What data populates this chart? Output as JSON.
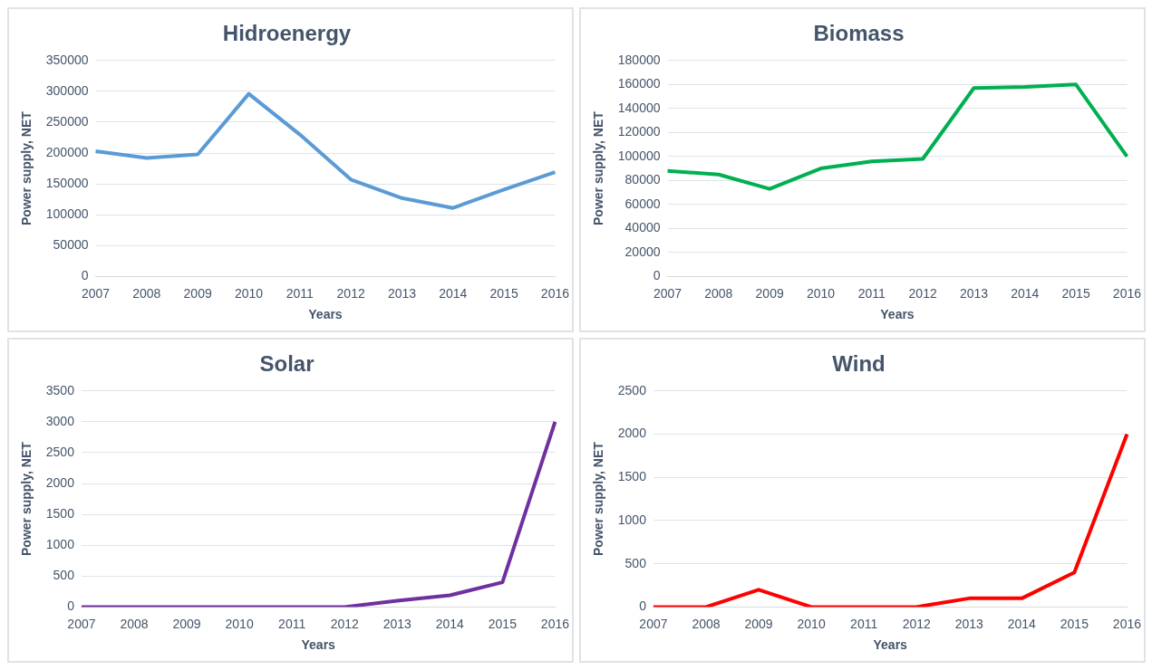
{
  "chart_data": [
    {
      "type": "line",
      "title": "Hidroenergy",
      "xlabel": "Years",
      "ylabel": "Power supply, NET",
      "categories": [
        "2007",
        "2008",
        "2009",
        "2010",
        "2011",
        "2012",
        "2013",
        "2014",
        "2015",
        "2016"
      ],
      "series": [
        {
          "color": "#5b9bd5",
          "values": [
            203000,
            192000,
            198000,
            296000,
            230000,
            157000,
            127000,
            111000,
            141000,
            169000
          ]
        }
      ],
      "ylim": [
        0,
        350000
      ],
      "yticks": [
        0,
        50000,
        100000,
        150000,
        200000,
        250000,
        300000,
        350000
      ],
      "grid": "y",
      "legend": false,
      "marker": "none"
    },
    {
      "type": "line",
      "title": "Biomass",
      "xlabel": "Years",
      "ylabel": "Power supply, NET",
      "categories": [
        "2007",
        "2008",
        "2009",
        "2010",
        "2011",
        "2012",
        "2013",
        "2014",
        "2015",
        "2016"
      ],
      "series": [
        {
          "color": "#00b050",
          "values": [
            88000,
            85000,
            73000,
            90000,
            96000,
            98000,
            157000,
            158000,
            160000,
            100000
          ]
        }
      ],
      "ylim": [
        0,
        180000
      ],
      "yticks": [
        0,
        20000,
        40000,
        60000,
        80000,
        100000,
        120000,
        140000,
        160000,
        180000
      ],
      "grid": "y",
      "legend": false,
      "marker": "none"
    },
    {
      "type": "line",
      "title": "Solar",
      "xlabel": "Years",
      "ylabel": "Power supply, NET",
      "categories": [
        "2007",
        "2008",
        "2009",
        "2010",
        "2011",
        "2012",
        "2013",
        "2014",
        "2015",
        "2016"
      ],
      "series": [
        {
          "color": "#7030a0",
          "values": [
            0,
            0,
            0,
            0,
            0,
            0,
            100,
            190,
            400,
            3000
          ]
        }
      ],
      "ylim": [
        0,
        3500
      ],
      "yticks": [
        0,
        500,
        1000,
        1500,
        2000,
        2500,
        3000,
        3500
      ],
      "grid": "y",
      "legend": false,
      "marker": "none"
    },
    {
      "type": "line",
      "title": "Wind",
      "xlabel": "Years",
      "ylabel": "Power supply, NET",
      "categories": [
        "2007",
        "2008",
        "2009",
        "2010",
        "2011",
        "2012",
        "2013",
        "2014",
        "2015",
        "2016"
      ],
      "series": [
        {
          "color": "#ff0000",
          "values": [
            0,
            0,
            200,
            0,
            0,
            0,
            100,
            100,
            400,
            2000
          ]
        }
      ],
      "ylim": [
        0,
        2500
      ],
      "yticks": [
        0,
        500,
        1000,
        1500,
        2000,
        2500
      ],
      "grid": "y",
      "legend": false,
      "marker": "none"
    }
  ]
}
